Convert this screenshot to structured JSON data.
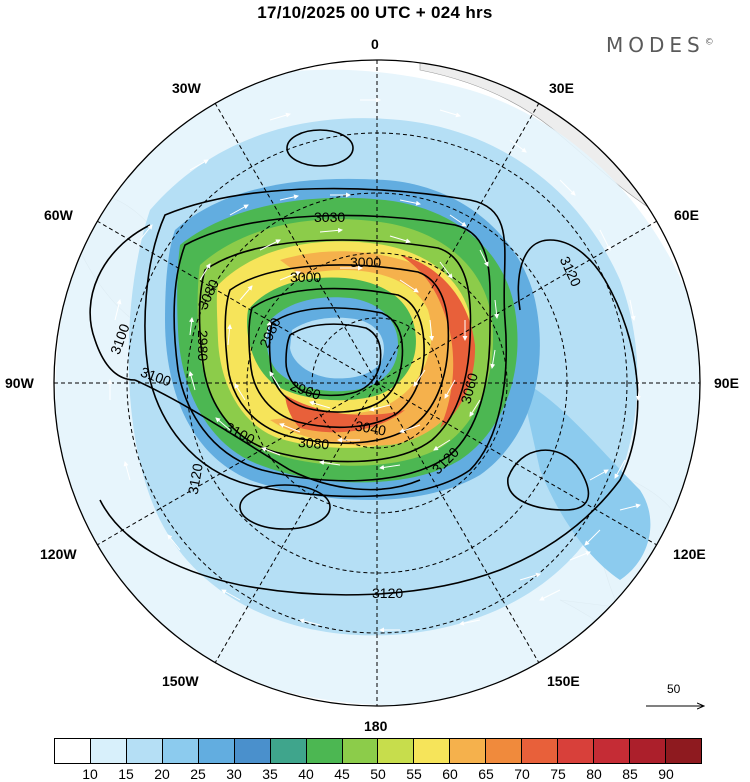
{
  "title": "17/10/2025  00 UTC  + 024 hrs",
  "brand": "MODES",
  "brand_mark": "©",
  "longitude_labels": {
    "n0": "0",
    "n30e": "30E",
    "n60e": "60E",
    "n90e": "90E",
    "n120e": "120E",
    "n150e": "150E",
    "n180": "180",
    "n150w": "150W",
    "n120w": "120W",
    "n90w": "90W",
    "n60w": "60W",
    "n30w": "30W"
  },
  "contour_labels": {
    "c3030": "3030",
    "c3000a": "3000",
    "c3000b": "3000",
    "c3080a": "3080",
    "c2980a": "2980",
    "c2960": "2960",
    "c2980b": "2980",
    "c3100a": "3100",
    "c3100b": "3100",
    "c3100c": "3100",
    "c3040": "3040",
    "c3080b": "3080",
    "c3060": "3060",
    "c3120a": "3120",
    "c3120b": "3120",
    "c3120c": "3120",
    "c3120d": "3120"
  },
  "vector_scale": "50",
  "colorbar": {
    "colors": [
      "#ffffff",
      "#d8f0fb",
      "#b5dff5",
      "#8ccbee",
      "#62ade0",
      "#4a90cc",
      "#3fa58c",
      "#4cb752",
      "#8ccc4a",
      "#c7dd4c",
      "#f6e45a",
      "#f5b14c",
      "#f08a3c",
      "#e8603a",
      "#d8403a",
      "#c52c35",
      "#ac1f2b",
      "#8e1a1f"
    ],
    "labels": [
      "10",
      "15",
      "20",
      "25",
      "30",
      "35",
      "40",
      "45",
      "50",
      "55",
      "60",
      "65",
      "70",
      "75",
      "80",
      "85",
      "90"
    ]
  }
}
